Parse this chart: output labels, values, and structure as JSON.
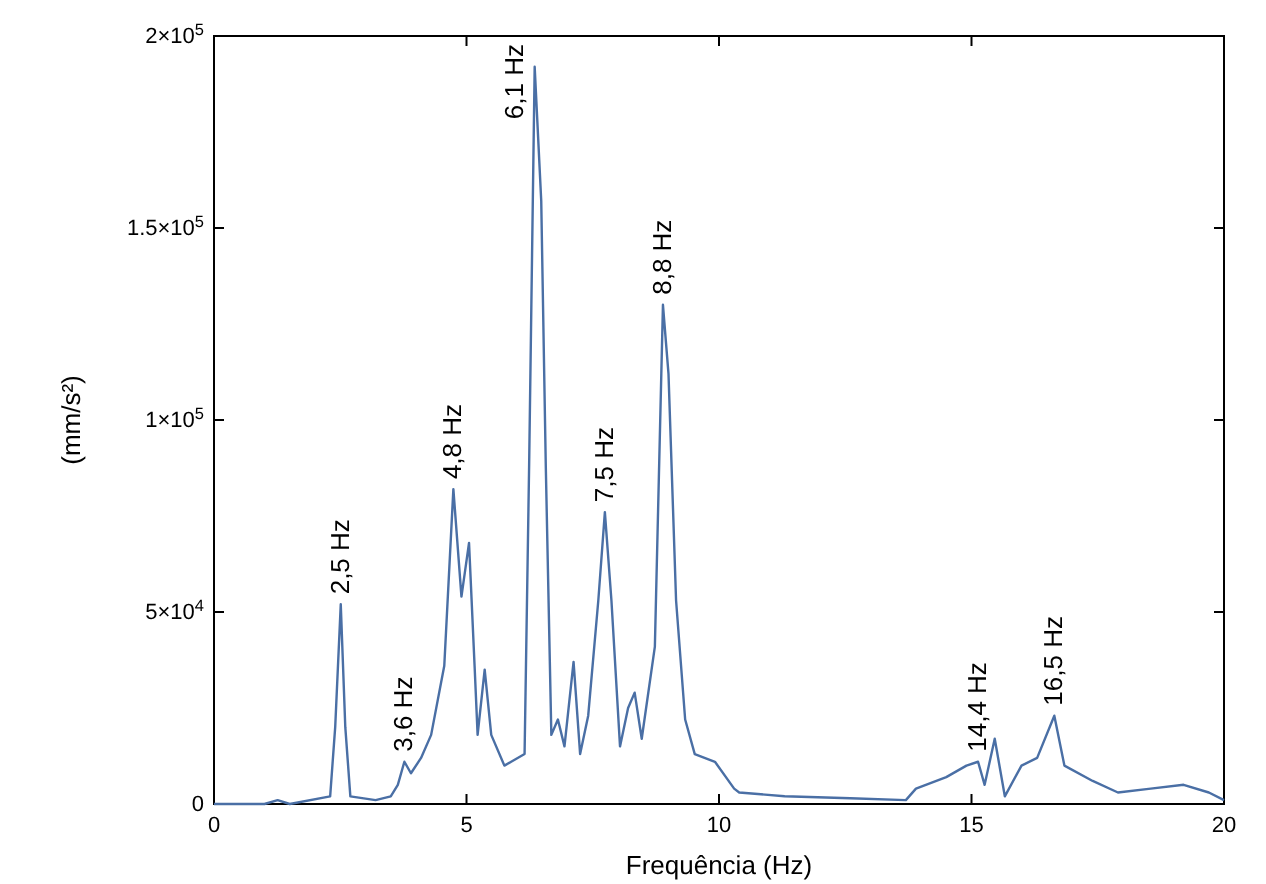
{
  "chart_data": {
    "type": "line",
    "xlabel": "Frequência (Hz)",
    "ylabel": "(mm/s²)",
    "xlim": [
      0,
      20
    ],
    "xticks": [
      0,
      5,
      10,
      15,
      20
    ],
    "ylim": [
      0,
      200000
    ],
    "yticks": [
      0,
      {
        "value": 50000,
        "label": "5×10$^{4}$"
      },
      {
        "value": 100000,
        "label": "1×10$^{5}$"
      },
      {
        "value": 150000,
        "label": "1.5×10$^{5}$"
      },
      {
        "value": 200000,
        "label": "2×10$^{5}$"
      }
    ],
    "grid": false,
    "marker": "none",
    "line_style": "solid",
    "series": [
      {
        "color": "#4a6fa5",
        "x": [
          0,
          1.0,
          1.26,
          1.5,
          2.3,
          2.4,
          2.51,
          2.6,
          2.7,
          3.2,
          3.5,
          3.64,
          3.77,
          3.9,
          4.1,
          4.3,
          4.56,
          4.74,
          4.9,
          5.05,
          5.16,
          5.22,
          5.36,
          5.49,
          5.75,
          6.15,
          6.24,
          6.35,
          6.48,
          6.57,
          6.68,
          6.81,
          6.94,
          7.12,
          7.25,
          7.41,
          7.61,
          7.74,
          7.87,
          8.04,
          8.2,
          8.33,
          8.47,
          8.73,
          8.89,
          9.0,
          9.15,
          9.33,
          9.52,
          9.92,
          10.3,
          10.4,
          11.3,
          12.6,
          13.7,
          13.9,
          14.5,
          14.9,
          15.13,
          15.26,
          15.46,
          15.66,
          15.99,
          16.3,
          16.64,
          16.84,
          17.4,
          17.9,
          18.55,
          19.2,
          19.7,
          20
        ],
        "values": [
          0,
          0,
          1000,
          0,
          2000,
          20000,
          52000,
          20000,
          2000,
          1000,
          2000,
          5000,
          11000,
          8000,
          12000,
          18000,
          36000,
          82000,
          54000,
          68000,
          36000,
          18000,
          35000,
          18000,
          10000,
          13000,
          88000,
          192000,
          157000,
          88000,
          18000,
          22000,
          15000,
          37000,
          13000,
          23000,
          53000,
          76000,
          53000,
          15000,
          25000,
          29000,
          17000,
          41000,
          130000,
          112000,
          53000,
          22000,
          13000,
          11000,
          4000,
          3000,
          2000,
          1500,
          1000,
          4000,
          7000,
          10000,
          11000,
          5000,
          17000,
          2000,
          10000,
          12000,
          23000,
          10000,
          6000,
          3000,
          4000,
          5000,
          3000,
          1000
        ]
      }
    ],
    "annotations": [
      {
        "text": "2,5 Hz",
        "x": 2.51,
        "y": 52000
      },
      {
        "text": "3,6 Hz",
        "x": 3.77,
        "y": 11000
      },
      {
        "text": "4,8 Hz",
        "x": 4.74,
        "y": 82000
      },
      {
        "text": "6,1 Hz",
        "x": 6.35,
        "y": 192000
      },
      {
        "text": "7,5 Hz",
        "x": 7.74,
        "y": 76000
      },
      {
        "text": "8,8 Hz",
        "x": 8.89,
        "y": 130000
      },
      {
        "text": "14,4 Hz",
        "x": 15.13,
        "y": 11000
      },
      {
        "text": "16,5 Hz",
        "x": 16.64,
        "y": 23000
      }
    ]
  }
}
